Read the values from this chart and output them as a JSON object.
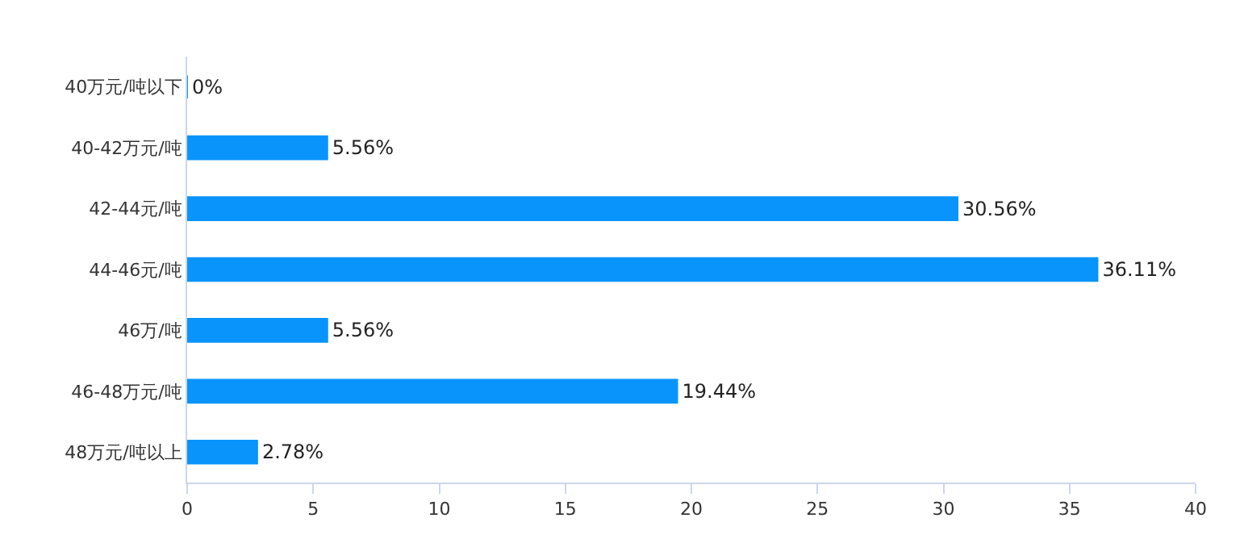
{
  "chart_data": {
    "type": "bar",
    "orientation": "horizontal",
    "categories": [
      "40万元/吨以下",
      "40-42万元/吨",
      "42-44元/吨",
      "44-46元/吨",
      "46万/吨",
      "46-48万元/吨",
      "48万元/吨以上"
    ],
    "values": [
      0,
      5.56,
      30.56,
      36.11,
      5.56,
      19.44,
      2.78
    ],
    "value_labels": [
      "0%",
      "5.56%",
      "30.56%",
      "36.11%",
      "5.56%",
      "19.44%",
      "2.78%"
    ],
    "color": "#0894fb",
    "xlim": [
      0,
      40
    ],
    "xticks": [
      0,
      5,
      10,
      15,
      20,
      25,
      30,
      35,
      40
    ],
    "grid": false,
    "legend": false
  }
}
